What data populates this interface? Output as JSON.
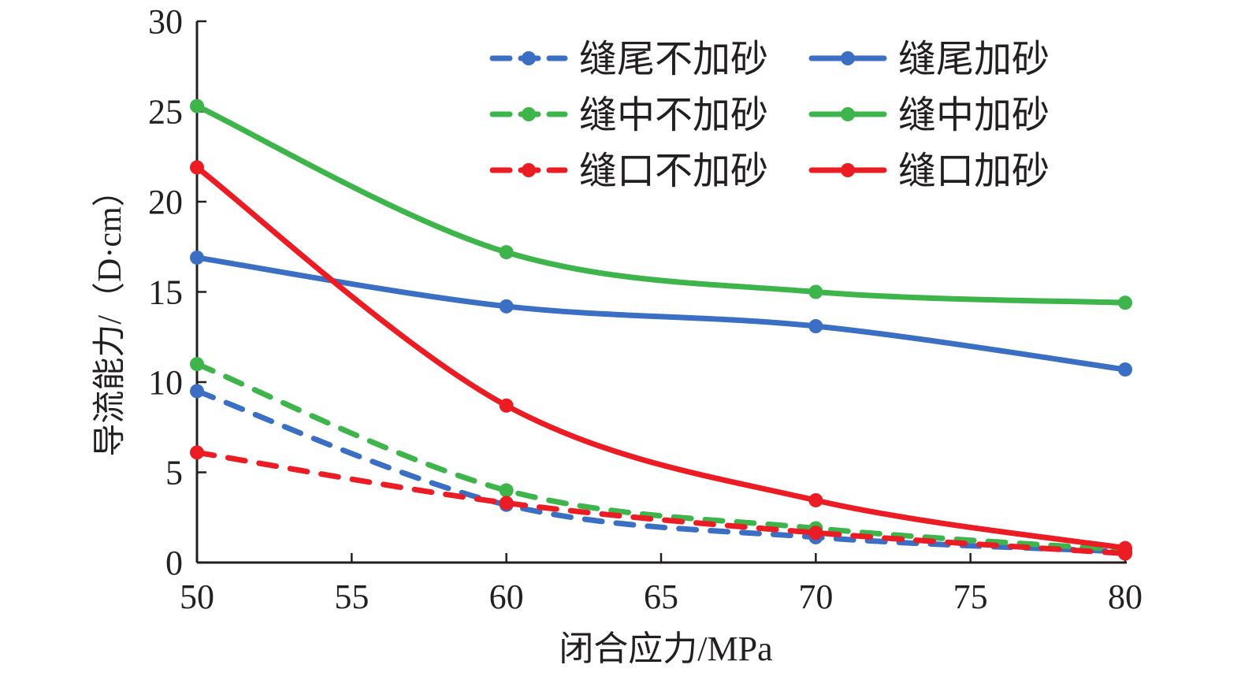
{
  "chart_data": {
    "type": "line",
    "xlabel": "闭合应力/MPa",
    "ylabel": "导流能力/（D·cm）",
    "xlim": [
      50,
      80
    ],
    "ylim": [
      0,
      30
    ],
    "xticks": [
      50,
      55,
      60,
      65,
      70,
      75,
      80
    ],
    "yticks": [
      0,
      5,
      10,
      15,
      20,
      25,
      30
    ],
    "grid": false,
    "legend_position": "top-right",
    "x": [
      50,
      60,
      70,
      80
    ],
    "series": [
      {
        "name": "缝尾不加砂",
        "color": "#3a6fc4",
        "dashed": true,
        "values": [
          9.5,
          3.2,
          1.4,
          0.6
        ]
      },
      {
        "name": "缝尾加砂",
        "color": "#3a6fc4",
        "dashed": false,
        "values": [
          16.9,
          14.2,
          13.1,
          10.7
        ]
      },
      {
        "name": "缝中不加砂",
        "color": "#3db54a",
        "dashed": true,
        "values": [
          11.0,
          4.0,
          1.9,
          0.7
        ]
      },
      {
        "name": "缝中加砂",
        "color": "#3db54a",
        "dashed": false,
        "values": [
          25.3,
          17.2,
          15.0,
          14.4
        ]
      },
      {
        "name": "缝口不加砂",
        "color": "#ec1c24",
        "dashed": true,
        "values": [
          6.1,
          3.3,
          1.65,
          0.5
        ]
      },
      {
        "name": "缝口加砂",
        "color": "#ec1c24",
        "dashed": false,
        "values": [
          21.9,
          8.7,
          3.45,
          0.8
        ]
      }
    ]
  }
}
